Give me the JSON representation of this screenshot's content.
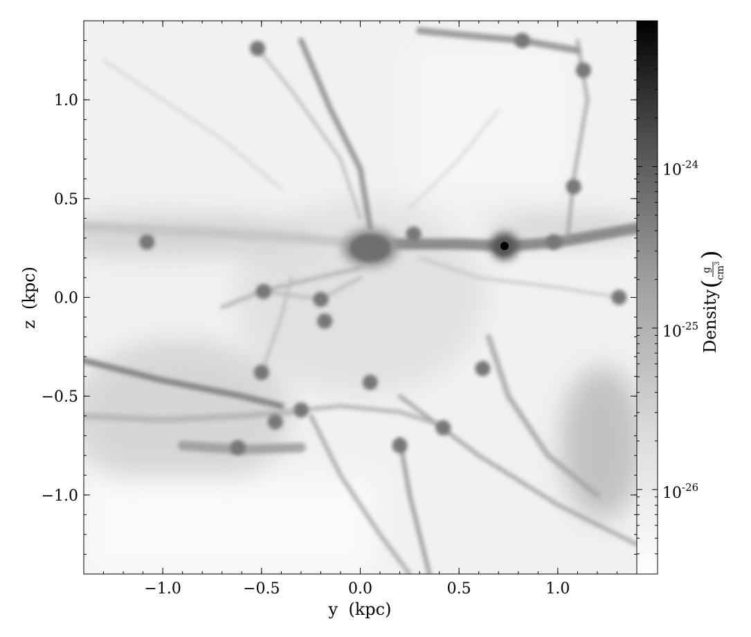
{
  "chart_data": {
    "type": "heatmap",
    "title": "",
    "xlabel": "y  (kpc)",
    "ylabel": "z  (kpc)",
    "xlim": [
      -1.4,
      1.4
    ],
    "ylim": [
      -1.4,
      1.4
    ],
    "xticks": [
      {
        "value": -1.0,
        "label": "−1.0"
      },
      {
        "value": -0.5,
        "label": "−0.5"
      },
      {
        "value": 0.0,
        "label": "0.0"
      },
      {
        "value": 0.5,
        "label": "0.5"
      },
      {
        "value": 1.0,
        "label": "1.0"
      }
    ],
    "yticks": [
      {
        "value": -1.0,
        "label": "−1.0"
      },
      {
        "value": -0.5,
        "label": "−0.5"
      },
      {
        "value": 0.0,
        "label": "0.0"
      },
      {
        "value": 0.5,
        "label": "0.5"
      },
      {
        "value": 1.0,
        "label": "1.0"
      }
    ],
    "colormap": "grayscale (white = low, black = high)",
    "colorbar": {
      "label": "Density",
      "unit_num": "g",
      "unit_den": "cm",
      "unit_den_exp": "3",
      "scale": "log",
      "range": [
        3e-27,
        8e-24
      ],
      "ticks": [
        {
          "value": 1e-24,
          "base": "10",
          "exp": "-24"
        },
        {
          "value": 1e-25,
          "base": "10",
          "exp": "-25"
        },
        {
          "value": 1e-26,
          "base": "10",
          "exp": "-26"
        }
      ]
    },
    "features": {
      "central_clump": {
        "y": 0.05,
        "z": 0.25,
        "radius": 0.11
      },
      "dense_core": {
        "y": 0.73,
        "z": 0.26
      },
      "clumps": [
        {
          "y": 0.27,
          "z": 0.32
        },
        {
          "y": 0.72,
          "z": 0.25
        },
        {
          "y": 0.98,
          "z": 0.28
        },
        {
          "y": -0.52,
          "z": 1.26
        },
        {
          "y": 0.82,
          "z": 1.3
        },
        {
          "y": 1.13,
          "z": 1.15
        },
        {
          "y": -0.49,
          "z": 0.03
        },
        {
          "y": -0.2,
          "z": -0.01
        },
        {
          "y": -0.18,
          "z": -0.12
        },
        {
          "y": 1.31,
          "z": 0.0
        },
        {
          "y": 0.62,
          "z": -0.36
        },
        {
          "y": -0.5,
          "z": -0.38
        },
        {
          "y": -0.43,
          "z": -0.63
        },
        {
          "y": -0.3,
          "z": -0.57
        },
        {
          "y": -0.62,
          "z": -0.76
        },
        {
          "y": 0.2,
          "z": -0.75
        },
        {
          "y": 0.42,
          "z": -0.66
        },
        {
          "y": 0.05,
          "z": -0.43
        },
        {
          "y": -1.08,
          "z": 0.28
        },
        {
          "y": 1.08,
          "z": 0.56
        }
      ]
    }
  }
}
